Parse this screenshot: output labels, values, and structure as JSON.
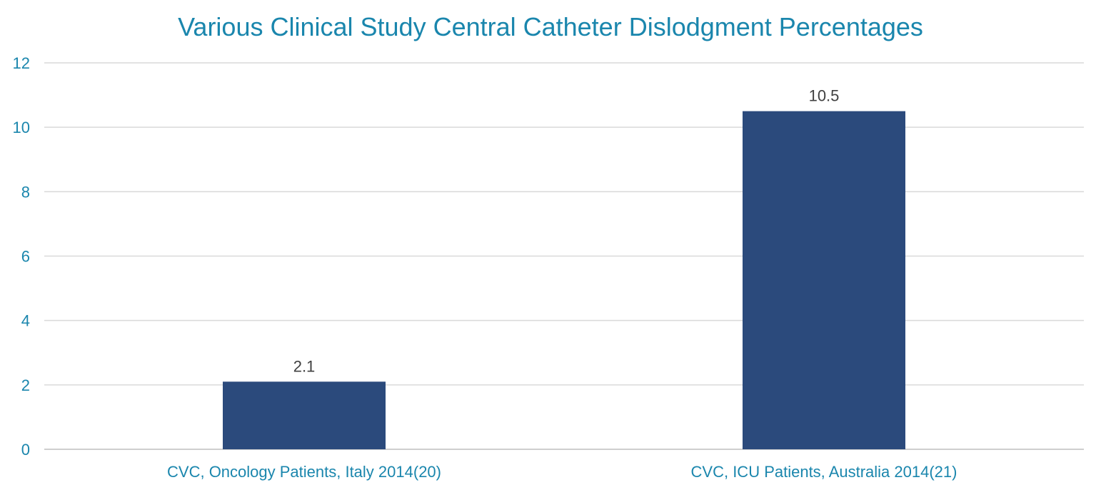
{
  "chart_data": {
    "type": "bar",
    "title": "Various Clinical Study Central Catheter Dislodgment Percentages",
    "categories": [
      "CVC, Oncology Patients, Italy 2014(20)",
      "CVC, ICU Patients, Australia 2014(21)"
    ],
    "values": [
      2.1,
      10.5
    ],
    "data_labels": [
      "2.1",
      "10.5"
    ],
    "xlabel": "",
    "ylabel": "",
    "ylim": [
      0,
      12
    ],
    "yticks": [
      0,
      2,
      4,
      6,
      8,
      10,
      12
    ],
    "ytick_labels": [
      "0",
      "2",
      "4",
      "6",
      "8",
      "10",
      "12"
    ],
    "grid": true,
    "legend": "none",
    "colors": {
      "bar": "#2b4a7c",
      "title": "#1a86ad",
      "axis_text": "#1a86ad",
      "data_label": "#404040",
      "grid": "#d9d9d9"
    }
  }
}
